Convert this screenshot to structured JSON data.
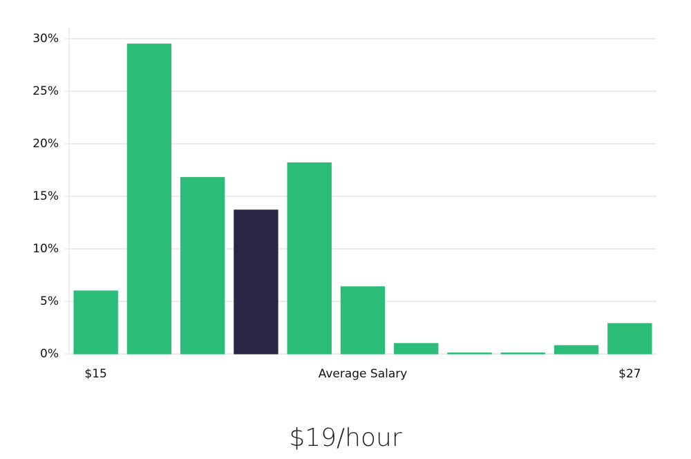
{
  "chart_data": {
    "type": "bar",
    "subtitle": "$19/hour",
    "xlabel": "Average Salary",
    "categories": [
      "$15",
      null,
      null,
      null,
      null,
      null,
      null,
      null,
      null,
      null,
      "$27"
    ],
    "values": [
      6.0,
      29.5,
      16.8,
      13.7,
      18.2,
      6.4,
      1.0,
      0.1,
      0.1,
      0.8,
      2.9
    ],
    "colors": [
      "#2bbd77",
      "#2bbd77",
      "#2bbd77",
      "#2a2546",
      "#2bbd77",
      "#2bbd77",
      "#2bbd77",
      "#2bbd77",
      "#2bbd77",
      "#2bbd77",
      "#2bbd77"
    ],
    "ylim": [
      0,
      30
    ],
    "yticks": [
      {
        "value": 0,
        "label": "0%"
      },
      {
        "value": 5,
        "label": "5%"
      },
      {
        "value": 10,
        "label": "10%"
      },
      {
        "value": 15,
        "label": "15%"
      },
      {
        "value": 20,
        "label": "20%"
      },
      {
        "value": 25,
        "label": "25%"
      },
      {
        "value": 30,
        "label": "30%"
      }
    ],
    "grid": true
  }
}
